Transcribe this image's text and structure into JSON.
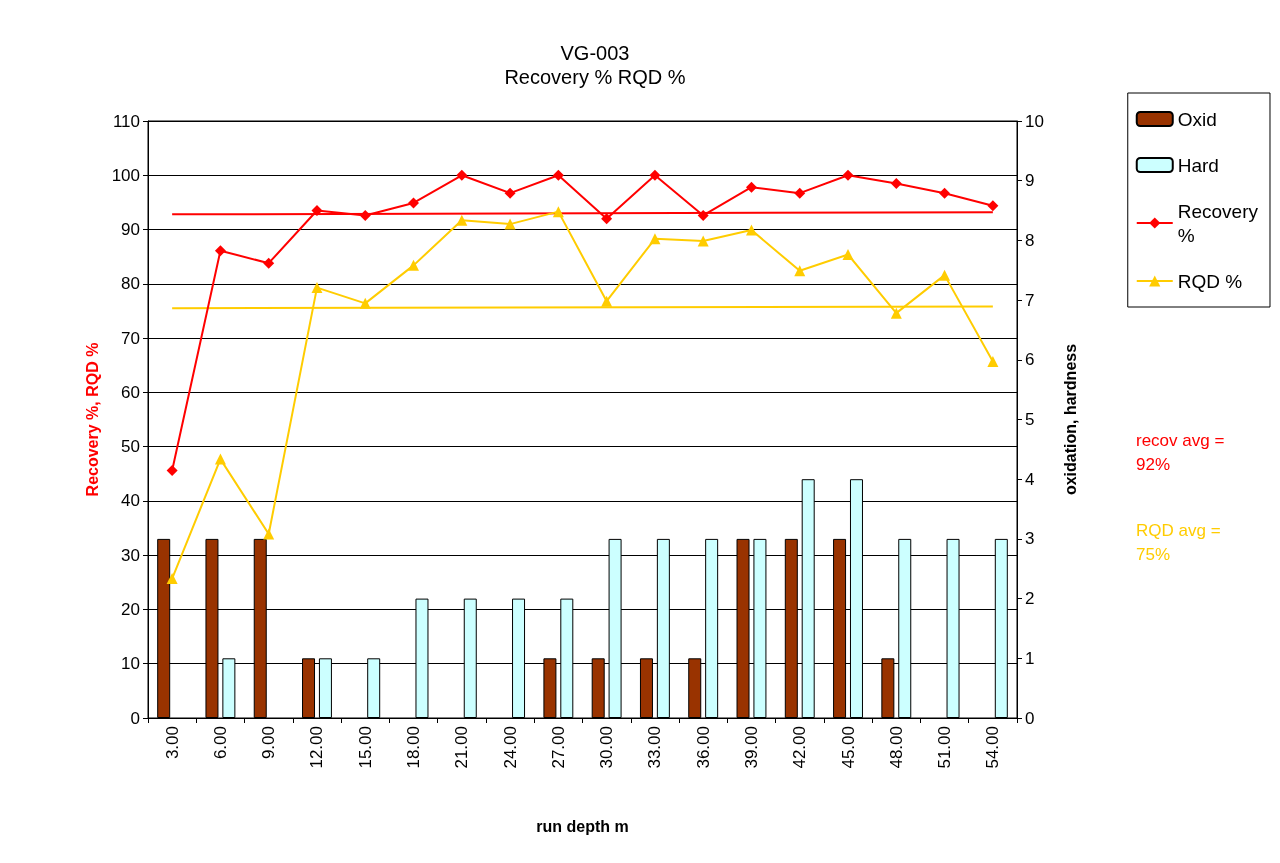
{
  "chart_data": {
    "type": "bar",
    "title": "VG-003",
    "subtitle": "Recovery % RQD %",
    "xlabel": "run depth m",
    "ylabel": "Recovery %, RQD %",
    "y2label": "oxidation, hardness",
    "categories": [
      "3.00",
      "6.00",
      "9.00",
      "12.00",
      "15.00",
      "18.00",
      "21.00",
      "24.00",
      "27.00",
      "30.00",
      "33.00",
      "36.00",
      "39.00",
      "42.00",
      "45.00",
      "48.00",
      "51.00",
      "54.00"
    ],
    "series": [
      {
        "name": "Oxid",
        "axis": "y2",
        "color": "#993300",
        "values": [
          3,
          3,
          3,
          1,
          0,
          0,
          0,
          0,
          1,
          1,
          1,
          1,
          3,
          3,
          3,
          1,
          0,
          0
        ]
      },
      {
        "name": "Hard",
        "axis": "y2",
        "color": "#ccffff",
        "values": [
          0,
          1,
          0,
          1,
          1,
          2,
          2,
          2,
          2,
          3,
          3,
          3,
          3,
          4,
          4,
          3,
          3,
          3
        ]
      },
      {
        "name": "Recovery %",
        "type": "line",
        "color": "#ff0000",
        "marker": "diamond",
        "values": [
          45.6,
          86.1,
          83.8,
          93.5,
          92.6,
          94.9,
          100,
          96.7,
          100,
          92,
          100,
          92.6,
          97.8,
          96.7,
          100,
          98.5,
          96.7,
          94.4
        ]
      },
      {
        "name": "RQD %",
        "type": "line",
        "color": "#ffcc00",
        "marker": "triangle",
        "values": [
          25.7,
          47.7,
          33.9,
          79.3,
          76.4,
          83.4,
          91.7,
          91,
          93.3,
          76.8,
          88.3,
          87.9,
          89.9,
          82.4,
          85.4,
          74.6,
          81.6,
          65.7
        ]
      },
      {
        "type": "line",
        "color": "#ff0000",
        "marker": "none",
        "x": [
          "3.00",
          "54.00"
        ],
        "values": [
          92.8,
          93.2
        ]
      },
      {
        "type": "line",
        "color": "#ffcc00",
        "marker": "none",
        "x": [
          "3.00",
          "54.00"
        ],
        "values": [
          75.5,
          75.8
        ]
      }
    ],
    "ylim": [
      0,
      110
    ],
    "yticks": [
      0,
      10,
      20,
      30,
      40,
      50,
      60,
      70,
      80,
      90,
      100,
      110
    ],
    "y2lim": [
      0,
      10
    ],
    "y2ticks": [
      0,
      1,
      2,
      3,
      4,
      5,
      6,
      7,
      8,
      9,
      10
    ],
    "grid": "y",
    "legend": "top right",
    "annotations": [
      "recov avg = 92%",
      "RQD avg = 75%"
    ]
  }
}
